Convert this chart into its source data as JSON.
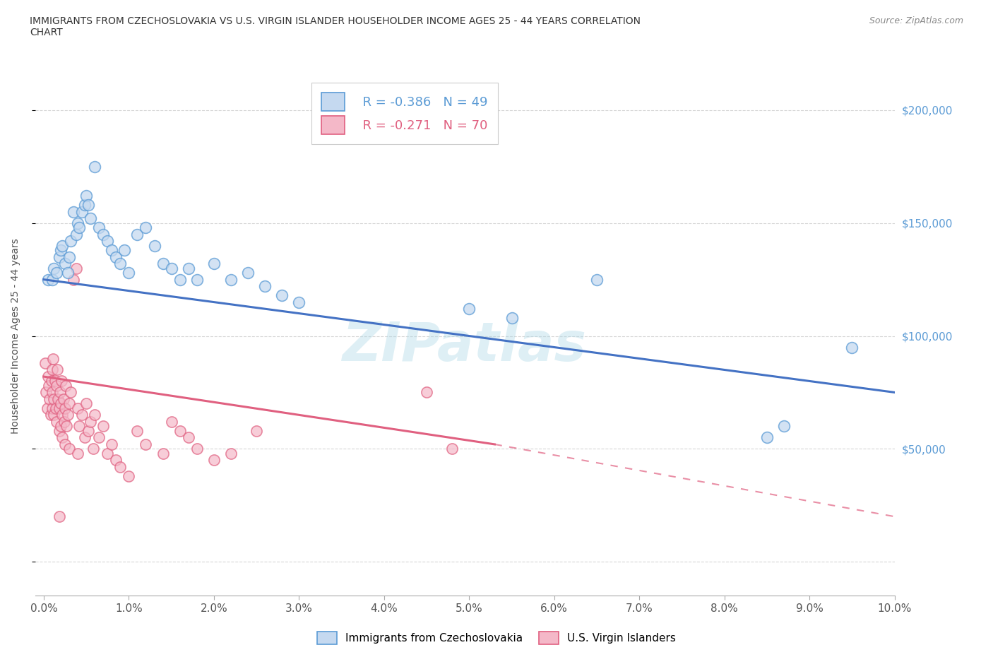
{
  "title_line1": "IMMIGRANTS FROM CZECHOSLOVAKIA VS U.S. VIRGIN ISLANDER HOUSEHOLDER INCOME AGES 25 - 44 YEARS CORRELATION",
  "title_line2": "CHART",
  "source": "Source: ZipAtlas.com",
  "ylabel": "Householder Income Ages 25 - 44 years",
  "watermark": "ZIPatlas",
  "legend_blue_r": "R = -0.386",
  "legend_blue_n": "N = 49",
  "legend_pink_r": "R = -0.271",
  "legend_pink_n": "N = 70",
  "legend_blue_label": "Immigrants from Czechoslovakia",
  "legend_pink_label": "U.S. Virgin Islanders",
  "blue_fill": "#c5d9f0",
  "blue_edge": "#5b9bd5",
  "pink_fill": "#f4b8c8",
  "pink_edge": "#e06080",
  "blue_line_color": "#4472c4",
  "pink_line_color": "#e06080",
  "blue_scatter": [
    [
      0.05,
      125000
    ],
    [
      0.1,
      125000
    ],
    [
      0.12,
      130000
    ],
    [
      0.15,
      128000
    ],
    [
      0.18,
      135000
    ],
    [
      0.2,
      138000
    ],
    [
      0.22,
      140000
    ],
    [
      0.25,
      132000
    ],
    [
      0.28,
      128000
    ],
    [
      0.3,
      135000
    ],
    [
      0.32,
      142000
    ],
    [
      0.35,
      155000
    ],
    [
      0.38,
      145000
    ],
    [
      0.4,
      150000
    ],
    [
      0.42,
      148000
    ],
    [
      0.45,
      155000
    ],
    [
      0.48,
      158000
    ],
    [
      0.5,
      162000
    ],
    [
      0.52,
      158000
    ],
    [
      0.55,
      152000
    ],
    [
      0.6,
      175000
    ],
    [
      0.65,
      148000
    ],
    [
      0.7,
      145000
    ],
    [
      0.75,
      142000
    ],
    [
      0.8,
      138000
    ],
    [
      0.85,
      135000
    ],
    [
      0.9,
      132000
    ],
    [
      0.95,
      138000
    ],
    [
      1.0,
      128000
    ],
    [
      1.1,
      145000
    ],
    [
      1.2,
      148000
    ],
    [
      1.3,
      140000
    ],
    [
      1.4,
      132000
    ],
    [
      1.5,
      130000
    ],
    [
      1.6,
      125000
    ],
    [
      1.7,
      130000
    ],
    [
      1.8,
      125000
    ],
    [
      2.0,
      132000
    ],
    [
      2.2,
      125000
    ],
    [
      2.4,
      128000
    ],
    [
      2.6,
      122000
    ],
    [
      2.8,
      118000
    ],
    [
      3.0,
      115000
    ],
    [
      5.0,
      112000
    ],
    [
      5.5,
      108000
    ],
    [
      6.5,
      125000
    ],
    [
      8.5,
      55000
    ],
    [
      8.7,
      60000
    ],
    [
      9.5,
      95000
    ]
  ],
  "pink_scatter": [
    [
      0.02,
      88000
    ],
    [
      0.03,
      75000
    ],
    [
      0.04,
      68000
    ],
    [
      0.05,
      82000
    ],
    [
      0.06,
      78000
    ],
    [
      0.07,
      72000
    ],
    [
      0.08,
      65000
    ],
    [
      0.09,
      80000
    ],
    [
      0.1,
      85000
    ],
    [
      0.1,
      75000
    ],
    [
      0.1,
      68000
    ],
    [
      0.11,
      90000
    ],
    [
      0.12,
      72000
    ],
    [
      0.12,
      65000
    ],
    [
      0.13,
      80000
    ],
    [
      0.14,
      68000
    ],
    [
      0.15,
      78000
    ],
    [
      0.15,
      62000
    ],
    [
      0.16,
      85000
    ],
    [
      0.17,
      72000
    ],
    [
      0.18,
      68000
    ],
    [
      0.18,
      58000
    ],
    [
      0.19,
      75000
    ],
    [
      0.2,
      70000
    ],
    [
      0.2,
      60000
    ],
    [
      0.21,
      80000
    ],
    [
      0.22,
      65000
    ],
    [
      0.22,
      55000
    ],
    [
      0.23,
      72000
    ],
    [
      0.24,
      62000
    ],
    [
      0.25,
      68000
    ],
    [
      0.25,
      52000
    ],
    [
      0.26,
      78000
    ],
    [
      0.27,
      60000
    ],
    [
      0.28,
      65000
    ],
    [
      0.3,
      70000
    ],
    [
      0.3,
      50000
    ],
    [
      0.32,
      75000
    ],
    [
      0.35,
      125000
    ],
    [
      0.38,
      130000
    ],
    [
      0.4,
      68000
    ],
    [
      0.4,
      48000
    ],
    [
      0.42,
      60000
    ],
    [
      0.45,
      65000
    ],
    [
      0.48,
      55000
    ],
    [
      0.5,
      70000
    ],
    [
      0.52,
      58000
    ],
    [
      0.55,
      62000
    ],
    [
      0.58,
      50000
    ],
    [
      0.6,
      65000
    ],
    [
      0.65,
      55000
    ],
    [
      0.7,
      60000
    ],
    [
      0.75,
      48000
    ],
    [
      0.8,
      52000
    ],
    [
      0.85,
      45000
    ],
    [
      0.9,
      42000
    ],
    [
      1.0,
      38000
    ],
    [
      1.1,
      58000
    ],
    [
      1.2,
      52000
    ],
    [
      1.4,
      48000
    ],
    [
      1.5,
      62000
    ],
    [
      1.6,
      58000
    ],
    [
      1.7,
      55000
    ],
    [
      1.8,
      50000
    ],
    [
      2.0,
      45000
    ],
    [
      2.2,
      48000
    ],
    [
      2.5,
      58000
    ],
    [
      4.5,
      75000
    ],
    [
      4.8,
      50000
    ],
    [
      0.18,
      20000
    ]
  ],
  "blue_reg": [
    0.0,
    10.0,
    125000,
    75000
  ],
  "pink_reg_solid": [
    0.0,
    5.3,
    82000,
    52000
  ],
  "pink_reg_dashed": [
    5.3,
    10.0,
    52000,
    20000
  ],
  "xlim": [
    -0.1,
    10.0
  ],
  "ylim": [
    -15000,
    215000
  ],
  "ytick_values": [
    0,
    50000,
    100000,
    150000,
    200000
  ],
  "right_ytick_labels": [
    "$200,000",
    "$150,000",
    "$100,000",
    "$50,000"
  ],
  "right_ytick_values": [
    200000,
    150000,
    100000,
    50000
  ],
  "xticks": [
    0,
    1,
    2,
    3,
    4,
    5,
    6,
    7,
    8,
    9,
    10
  ],
  "xtick_labels": [
    "0.0%",
    "1.0%",
    "2.0%",
    "3.0%",
    "4.0%",
    "5.0%",
    "6.0%",
    "7.0%",
    "8.0%",
    "9.0%",
    "10.0%"
  ],
  "background_color": "#ffffff",
  "grid_color": "#cccccc"
}
